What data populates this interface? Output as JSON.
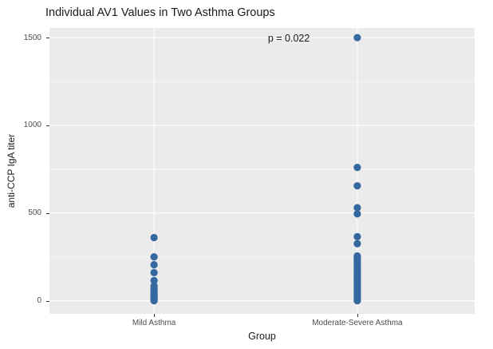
{
  "title": "Individual AV1 Values in Two Asthma Groups",
  "chart_data": {
    "type": "scatter",
    "subtype": "strip-plot",
    "title": "Individual AV1 Values in Two Asthma Groups",
    "xlabel": "Group",
    "ylabel": "anti-CCP IgA titer",
    "categories": [
      "Mild Asthma",
      "Moderate-Severe Asthma"
    ],
    "y_ticks": [
      0,
      500,
      1000,
      1500
    ],
    "y_minor_ticks": [
      250,
      750,
      1250
    ],
    "ylim": [
      -75,
      1555
    ],
    "grid": "on (ggplot gray panel, white gridlines)",
    "legend": "none",
    "annotation": {
      "text": "p = 0.022",
      "y": 1480
    },
    "point_color": "#35689F",
    "panel_bg": "#EBEBEB",
    "series": [
      {
        "name": "Mild Asthma",
        "values": [
          360,
          250,
          205,
          160,
          115,
          85,
          75,
          65,
          55,
          50,
          45,
          40,
          35,
          30,
          25,
          20,
          15,
          10,
          5,
          0
        ]
      },
      {
        "name": "Moderate-Severe Asthma",
        "values": [
          1500,
          760,
          655,
          530,
          495,
          365,
          325,
          255,
          245,
          235,
          225,
          215,
          205,
          195,
          185,
          175,
          165,
          155,
          145,
          135,
          125,
          115,
          105,
          95,
          85,
          75,
          65,
          55,
          45,
          35,
          25,
          15,
          5,
          0
        ]
      }
    ]
  }
}
